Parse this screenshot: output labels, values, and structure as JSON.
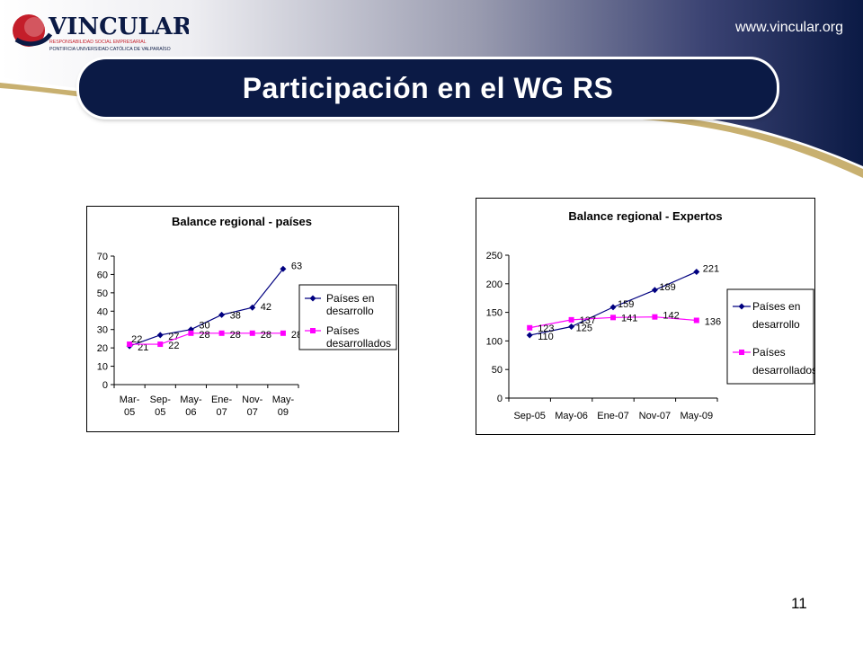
{
  "header": {
    "logo_text": "VINCULAR",
    "logo_subtitle": "RESPONSABILIDAD SOCIAL EMPRESARIAL",
    "logo_university": "PONTIFICIA UNIVERSIDAD CATÓLICA DE VALPARAÍSO",
    "url": "www.vincular.org",
    "title": "Participación en el WG RS"
  },
  "page_number": "11",
  "colors": {
    "navy": "#0b1a45",
    "series_developing": "#000080",
    "series_developed": "#ff00ff",
    "gold": "#c8b070"
  },
  "chart_data": [
    {
      "type": "line",
      "title": "Balance regional - países",
      "xlabel": "",
      "ylabel": "",
      "categories": [
        [
          "Mar-",
          "05"
        ],
        [
          "Sep-",
          "05"
        ],
        [
          "May-",
          "06"
        ],
        [
          "Ene-",
          "07"
        ],
        [
          "Nov-",
          "07"
        ],
        [
          "May-",
          "09"
        ]
      ],
      "ylim": [
        0,
        70
      ],
      "yticks": [
        0,
        10,
        20,
        30,
        40,
        50,
        60,
        70
      ],
      "grid": false,
      "legend": "right",
      "series": [
        {
          "name": "Países en desarrollo",
          "legend_lines": [
            "Países en",
            "desarrollo"
          ],
          "values": [
            21,
            27,
            30,
            38,
            42,
            63
          ],
          "color": "#000080",
          "marker": "diamond"
        },
        {
          "name": "Países desarrollados",
          "legend_lines": [
            "Países",
            "desarrollados"
          ],
          "values": [
            22,
            22,
            28,
            28,
            28,
            28
          ],
          "color": "#ff00ff",
          "marker": "square"
        }
      ]
    },
    {
      "type": "line",
      "title": "Balance regional - Expertos",
      "xlabel": "",
      "ylabel": "",
      "categories": [
        [
          "Sep-05"
        ],
        [
          "May-06"
        ],
        [
          "Ene-07"
        ],
        [
          "Nov-07"
        ],
        [
          "May-09"
        ]
      ],
      "ylim": [
        0,
        250
      ],
      "yticks": [
        0,
        50,
        100,
        150,
        200,
        250
      ],
      "grid": false,
      "legend": "right",
      "series": [
        {
          "name": "Países en desarrollo",
          "legend_lines": [
            "Países en",
            "desarrollo"
          ],
          "values": [
            110,
            125,
            159,
            189,
            221
          ],
          "color": "#000080",
          "marker": "diamond"
        },
        {
          "name": "Países desarrollados",
          "legend_lines": [
            "Países",
            "desarrollados"
          ],
          "values": [
            123,
            137,
            141,
            142,
            136
          ],
          "color": "#ff00ff",
          "marker": "square"
        }
      ]
    }
  ]
}
